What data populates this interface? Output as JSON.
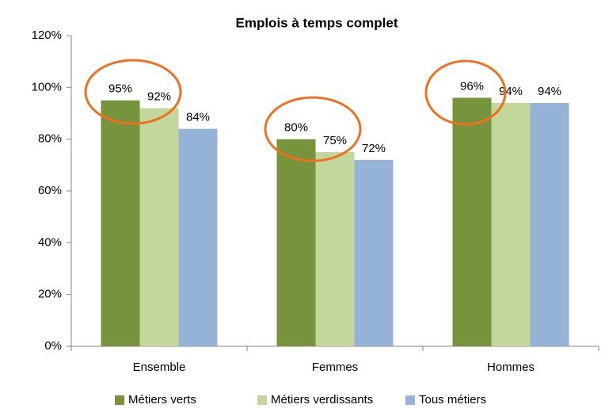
{
  "chart_data": {
    "type": "bar",
    "title": "Emplois à temps complet",
    "categories": [
      "Ensemble",
      "Femmes",
      "Hommes"
    ],
    "series": [
      {
        "name": "Métiers verts",
        "color": "#77933c",
        "values": [
          95,
          80,
          96
        ],
        "value_labels": [
          "95%",
          "80%",
          "96%"
        ]
      },
      {
        "name": "Métiers verdissants",
        "color": "#c3d69b",
        "values": [
          92,
          75,
          94
        ],
        "value_labels": [
          "92%",
          "75%",
          "94%"
        ]
      },
      {
        "name": "Tous métiers",
        "color": "#95b3d7",
        "values": [
          84,
          72,
          94
        ],
        "value_labels": [
          "84%",
          "72%",
          "94%"
        ]
      }
    ],
    "ylim": [
      0,
      120
    ],
    "yticks": [
      {
        "value": 0,
        "label": "0%"
      },
      {
        "value": 20,
        "label": "20%"
      },
      {
        "value": 40,
        "label": "40%"
      },
      {
        "value": 60,
        "label": "60%"
      },
      {
        "value": 80,
        "label": "80%"
      },
      {
        "value": 100,
        "label": "100%"
      },
      {
        "value": 120,
        "label": "120%"
      }
    ],
    "grid": false,
    "legend": "bottom"
  }
}
